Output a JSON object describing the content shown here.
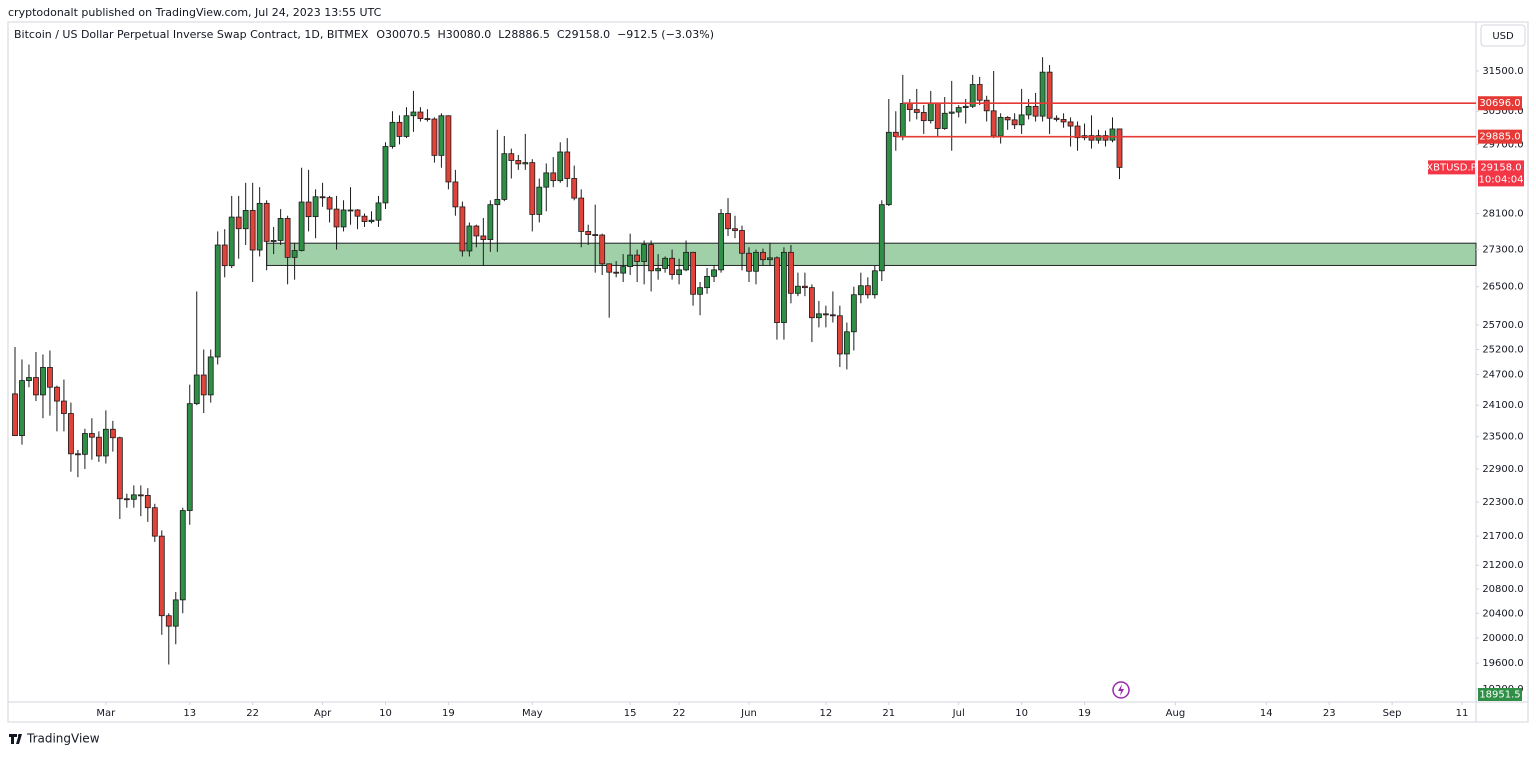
{
  "published": "cryptodonalt published on TradingView.com, Jul 24, 2023 13:55 UTC",
  "brand": "TradingView",
  "chart_data": {
    "type": "candlestick",
    "title": "Bitcoin / US Dollar Perpetual Inverse Swap Contract, 1D, BITMEX",
    "legend": [
      "O30070.5",
      "H30080.0",
      "L28886.5",
      "C29158.0",
      "−912.5 (−3.03%)"
    ],
    "currency": "USD",
    "up_color": "#2f8f46",
    "down_color": "#e0433a",
    "log_scale": true,
    "grid": false,
    "xlim": [
      "Feb 15",
      "Sep 13"
    ],
    "xticks": [
      {
        "value": "Mar 1",
        "label": "Mar"
      },
      {
        "value": "Mar 13",
        "label": "13"
      },
      {
        "value": "Mar 22",
        "label": "22"
      },
      {
        "value": "Apr 1",
        "label": "Apr"
      },
      {
        "value": "Apr 10",
        "label": "10"
      },
      {
        "value": "Apr 19",
        "label": "19"
      },
      {
        "value": "May 1",
        "label": "May"
      },
      {
        "value": "May 15",
        "label": "15"
      },
      {
        "value": "May 22",
        "label": "22"
      },
      {
        "value": "Jun 1",
        "label": "Jun"
      },
      {
        "value": "Jun 12",
        "label": "12"
      },
      {
        "value": "Jun 21",
        "label": "21"
      },
      {
        "value": "Jul 1",
        "label": "Jul"
      },
      {
        "value": "Jul 10",
        "label": "10"
      },
      {
        "value": "Jul 19",
        "label": "19"
      },
      {
        "value": "Aug 1",
        "label": "Aug"
      },
      {
        "value": "Aug 14",
        "label": "14"
      },
      {
        "value": "Aug 23",
        "label": "23"
      },
      {
        "value": "Sep 1",
        "label": "Sep"
      },
      {
        "value": "Sep 11",
        "label": "11"
      }
    ],
    "ylim": [
      19000,
      32760
    ],
    "yticks": [
      {
        "value": 31500,
        "label": "31500.0"
      },
      {
        "value": 30500,
        "label": "30500.0"
      },
      {
        "value": 29700,
        "label": "29700.0"
      },
      {
        "value": 28100,
        "label": "28100.0"
      },
      {
        "value": 27300,
        "label": "27300.0"
      },
      {
        "value": 26500,
        "label": "26500.0"
      },
      {
        "value": 25700,
        "label": "25700.0"
      },
      {
        "value": 25200,
        "label": "25200.0"
      },
      {
        "value": 24700,
        "label": "24700.0"
      },
      {
        "value": 24100,
        "label": "24100.0"
      },
      {
        "value": 23500,
        "label": "23500.0"
      },
      {
        "value": 22900,
        "label": "22900.0"
      },
      {
        "value": 22300,
        "label": "22300.0"
      },
      {
        "value": 21700,
        "label": "21700.0"
      },
      {
        "value": 21200,
        "label": "21200.0"
      },
      {
        "value": 20800,
        "label": "20800.0"
      },
      {
        "value": 20400,
        "label": "20400.0"
      },
      {
        "value": 20000,
        "label": "20000.0"
      },
      {
        "value": 19600,
        "label": "19600.0"
      },
      {
        "value": 19200,
        "label": "19200.0"
      }
    ],
    "zone": {
      "low": 26955,
      "high": 27440,
      "start": "Mar 24",
      "color": "#9fd0a8"
    },
    "price_lines": [
      {
        "value": 30696,
        "label": "30696.0",
        "start": "Jun 23",
        "color": "#e53935"
      },
      {
        "value": 29885,
        "label": "29885.0",
        "start": "Jun 22",
        "color": "#e53935"
      }
    ],
    "current": {
      "symbol": "XBTUSD.P",
      "value": 29158,
      "label": "29158.0",
      "countdown": "10:04:04",
      "color": "#f23645"
    },
    "bottom_price": 18951.5,
    "x": [
      "Feb 16",
      "Feb 17",
      "Feb 18",
      "Feb 19",
      "Feb 20",
      "Feb 21",
      "Feb 22",
      "Feb 23",
      "Feb 24",
      "Feb 25",
      "Feb 26",
      "Feb 27",
      "Feb 28",
      "Mar 1",
      "Mar 2",
      "Mar 3",
      "Mar 4",
      "Mar 5",
      "Mar 6",
      "Mar 7",
      "Mar 8",
      "Mar 9",
      "Mar 10",
      "Mar 11",
      "Mar 12",
      "Mar 13",
      "Mar 14",
      "Mar 15",
      "Mar 16",
      "Mar 17",
      "Mar 18",
      "Mar 19",
      "Mar 20",
      "Mar 21",
      "Mar 22",
      "Mar 23",
      "Mar 24",
      "Mar 25",
      "Mar 26",
      "Mar 27",
      "Mar 28",
      "Mar 29",
      "Mar 30",
      "Mar 31",
      "Apr 1",
      "Apr 2",
      "Apr 3",
      "Apr 4",
      "Apr 5",
      "Apr 6",
      "Apr 7",
      "Apr 8",
      "Apr 9",
      "Apr 10",
      "Apr 11",
      "Apr 12",
      "Apr 13",
      "Apr 14",
      "Apr 15",
      "Apr 16",
      "Apr 17",
      "Apr 18",
      "Apr 19",
      "Apr 20",
      "Apr 21",
      "Apr 22",
      "Apr 23",
      "Apr 24",
      "Apr 25",
      "Apr 26",
      "Apr 27",
      "Apr 28",
      "Apr 29",
      "Apr 30",
      "May 1",
      "May 2",
      "May 3",
      "May 4",
      "May 5",
      "May 6",
      "May 7",
      "May 8",
      "May 9",
      "May 10",
      "May 11",
      "May 12",
      "May 13",
      "May 14",
      "May 15",
      "May 16",
      "May 17",
      "May 18",
      "May 19",
      "May 20",
      "May 21",
      "May 22",
      "May 23",
      "May 24",
      "May 25",
      "May 26",
      "May 27",
      "May 28",
      "May 29",
      "May 30",
      "May 31",
      "Jun 1",
      "Jun 2",
      "Jun 3",
      "Jun 4",
      "Jun 5",
      "Jun 6",
      "Jun 7",
      "Jun 8",
      "Jun 9",
      "Jun 10",
      "Jun 11",
      "Jun 12",
      "Jun 13",
      "Jun 14",
      "Jun 15",
      "Jun 16",
      "Jun 17",
      "Jun 18",
      "Jun 19",
      "Jun 20",
      "Jun 21",
      "Jun 22",
      "Jun 23",
      "Jun 24",
      "Jun 25",
      "Jun 26",
      "Jun 27",
      "Jun 28",
      "Jun 29",
      "Jun 30",
      "Jul 1",
      "Jul 2",
      "Jul 3",
      "Jul 4",
      "Jul 5",
      "Jul 6",
      "Jul 7",
      "Jul 8",
      "Jul 9",
      "Jul 10",
      "Jul 11",
      "Jul 12",
      "Jul 13",
      "Jul 14",
      "Jul 15",
      "Jul 16",
      "Jul 17",
      "Jul 18",
      "Jul 19",
      "Jul 20",
      "Jul 21",
      "Jul 22",
      "Jul 23",
      "Jul 24"
    ],
    "ohlc": [
      [
        24320,
        25250,
        23520,
        23520
      ],
      [
        23520,
        25000,
        23350,
        24580
      ],
      [
        24580,
        24900,
        24450,
        24640
      ],
      [
        24640,
        25150,
        24180,
        24300
      ],
      [
        24300,
        25100,
        23850,
        24840
      ],
      [
        24840,
        25180,
        23900,
        24450
      ],
      [
        24450,
        24480,
        23600,
        24180
      ],
      [
        24180,
        24600,
        23600,
        23940
      ],
      [
        23940,
        24150,
        22850,
        23180
      ],
      [
        23180,
        23250,
        22750,
        23170
      ],
      [
        23170,
        23650,
        22900,
        23560
      ],
      [
        23560,
        23850,
        23070,
        23490
      ],
      [
        23490,
        23600,
        23030,
        23140
      ],
      [
        23140,
        24000,
        23000,
        23640
      ],
      [
        23640,
        23800,
        23220,
        23480
      ],
      [
        23480,
        23500,
        22000,
        22360
      ],
      [
        22360,
        22450,
        22200,
        22350
      ],
      [
        22350,
        22600,
        22200,
        22430
      ],
      [
        22430,
        22600,
        22050,
        22420
      ],
      [
        22420,
        22550,
        21950,
        22200
      ],
      [
        22200,
        22270,
        21600,
        21700
      ],
      [
        21700,
        21800,
        20050,
        20360
      ],
      [
        20360,
        20400,
        19580,
        20190
      ],
      [
        20190,
        20750,
        19900,
        20620
      ],
      [
        20620,
        22200,
        20400,
        22150
      ],
      [
        22150,
        24500,
        21900,
        24130
      ],
      [
        24130,
        26400,
        24100,
        24690
      ],
      [
        24690,
        25200,
        23950,
        24300
      ],
      [
        24300,
        25200,
        24150,
        25050
      ],
      [
        25050,
        27700,
        24900,
        27400
      ],
      [
        27400,
        27750,
        26700,
        26950
      ],
      [
        26950,
        28500,
        26900,
        28020
      ],
      [
        28020,
        28500,
        27100,
        27760
      ],
      [
        27760,
        28800,
        27400,
        28170
      ],
      [
        28170,
        28800,
        26600,
        27290
      ],
      [
        27290,
        28700,
        27150,
        28330
      ],
      [
        28330,
        28400,
        26850,
        27480
      ],
      [
        27480,
        27800,
        27200,
        27500
      ],
      [
        27500,
        28200,
        27400,
        27990
      ],
      [
        27990,
        28050,
        26550,
        27130
      ],
      [
        27130,
        27450,
        26650,
        27280
      ],
      [
        27280,
        29150,
        27260,
        28360
      ],
      [
        28360,
        29100,
        27700,
        28030
      ],
      [
        28030,
        28650,
        27550,
        28480
      ],
      [
        28480,
        28800,
        28250,
        28460
      ],
      [
        28460,
        28500,
        27900,
        28200
      ],
      [
        28200,
        28500,
        27300,
        27800
      ],
      [
        27800,
        28400,
        27700,
        28180
      ],
      [
        28180,
        28700,
        27850,
        28180
      ],
      [
        28180,
        28200,
        27750,
        28040
      ],
      [
        28040,
        28100,
        27800,
        27920
      ],
      [
        27920,
        28150,
        27880,
        27950
      ],
      [
        27950,
        28500,
        27800,
        28340
      ],
      [
        28340,
        29750,
        28200,
        29650
      ],
      [
        29650,
        30500,
        29600,
        30230
      ],
      [
        30230,
        30400,
        29700,
        29890
      ],
      [
        29890,
        30600,
        29850,
        30390
      ],
      [
        30390,
        31000,
        30000,
        30480
      ],
      [
        30480,
        30600,
        30250,
        30320
      ],
      [
        30320,
        30550,
        30250,
        30310
      ],
      [
        30310,
        30350,
        29270,
        29440
      ],
      [
        29440,
        30450,
        29150,
        30390
      ],
      [
        30390,
        30400,
        28650,
        28820
      ],
      [
        28820,
        29100,
        28050,
        28250
      ],
      [
        28250,
        28370,
        27150,
        27270
      ],
      [
        27270,
        27900,
        27150,
        27820
      ],
      [
        27820,
        27850,
        27350,
        27600
      ],
      [
        27600,
        28000,
        26950,
        27520
      ],
      [
        27520,
        28400,
        27250,
        28300
      ],
      [
        28300,
        30050,
        27250,
        28420
      ],
      [
        28420,
        29900,
        28380,
        29480
      ],
      [
        29480,
        29600,
        28900,
        29320
      ],
      [
        29320,
        29450,
        29100,
        29240
      ],
      [
        29240,
        29950,
        29100,
        29270
      ],
      [
        29270,
        29350,
        27700,
        28080
      ],
      [
        28080,
        28900,
        27900,
        28700
      ],
      [
        28700,
        29250,
        28150,
        29030
      ],
      [
        29030,
        29400,
        28700,
        28850
      ],
      [
        28850,
        29750,
        28800,
        29520
      ],
      [
        29520,
        29850,
        28700,
        28900
      ],
      [
        28900,
        29200,
        28400,
        28450
      ],
      [
        28450,
        28650,
        27350,
        27700
      ],
      [
        27700,
        27850,
        27400,
        27630
      ],
      [
        27630,
        28300,
        26800,
        27620
      ],
      [
        27620,
        27650,
        26750,
        26990
      ],
      [
        26990,
        27000,
        25850,
        26810
      ],
      [
        26810,
        27050,
        26700,
        26790
      ],
      [
        26790,
        27200,
        26600,
        26930
      ],
      [
        26930,
        27650,
        26750,
        27180
      ],
      [
        27180,
        27300,
        26600,
        27040
      ],
      [
        27040,
        27500,
        26550,
        27410
      ],
      [
        27410,
        27500,
        26400,
        26840
      ],
      [
        26840,
        27200,
        26650,
        26890
      ],
      [
        26890,
        27150,
        26800,
        27110
      ],
      [
        27110,
        27300,
        26650,
        26760
      ],
      [
        26760,
        27100,
        26550,
        26860
      ],
      [
        26860,
        27500,
        26830,
        27240
      ],
      [
        27240,
        27250,
        26100,
        26340
      ],
      [
        26340,
        26600,
        25900,
        26480
      ],
      [
        26480,
        26900,
        26350,
        26720
      ],
      [
        26720,
        26950,
        26600,
        26860
      ],
      [
        26860,
        28200,
        26800,
        28100
      ],
      [
        28100,
        28450,
        27600,
        27760
      ],
      [
        27760,
        28050,
        27550,
        27720
      ],
      [
        27720,
        27830,
        26850,
        27220
      ],
      [
        27220,
        27350,
        26600,
        26830
      ],
      [
        26830,
        27300,
        26550,
        27240
      ],
      [
        27240,
        27320,
        26950,
        27080
      ],
      [
        27080,
        27450,
        26950,
        27120
      ],
      [
        27120,
        27150,
        25400,
        25750
      ],
      [
        25750,
        27350,
        25400,
        27240
      ],
      [
        27240,
        27400,
        26150,
        26360
      ],
      [
        26360,
        26800,
        26300,
        26510
      ],
      [
        26510,
        26800,
        26300,
        26480
      ],
      [
        26480,
        26550,
        25350,
        25850
      ],
      [
        25850,
        26200,
        25650,
        25930
      ],
      [
        25930,
        26100,
        25650,
        25910
      ],
      [
        25910,
        26400,
        25750,
        25890
      ],
      [
        25890,
        26100,
        24850,
        25110
      ],
      [
        25110,
        25750,
        24800,
        25560
      ],
      [
        25560,
        26500,
        25180,
        26330
      ],
      [
        26330,
        26800,
        26150,
        26520
      ],
      [
        26520,
        26700,
        26250,
        26330
      ],
      [
        26330,
        26950,
        26250,
        26840
      ],
      [
        26840,
        28400,
        26620,
        28300
      ],
      [
        28300,
        30800,
        28270,
        29990
      ],
      [
        29990,
        30500,
        29550,
        29890
      ],
      [
        29890,
        31400,
        29800,
        30690
      ],
      [
        30690,
        30800,
        30250,
        30540
      ],
      [
        30540,
        31050,
        30300,
        30470
      ],
      [
        30470,
        30650,
        29950,
        30270
      ],
      [
        30270,
        31000,
        30200,
        30690
      ],
      [
        30690,
        30700,
        29900,
        30080
      ],
      [
        30080,
        30850,
        30050,
        30450
      ],
      [
        30450,
        31250,
        29550,
        30480
      ],
      [
        30480,
        30650,
        30350,
        30590
      ],
      [
        30590,
        30800,
        30200,
        30620
      ],
      [
        30620,
        31400,
        30580,
        31160
      ],
      [
        31160,
        31350,
        30650,
        30770
      ],
      [
        30770,
        30880,
        30250,
        30510
      ],
      [
        30510,
        31500,
        29850,
        29900
      ],
      [
        29900,
        30450,
        29720,
        30350
      ],
      [
        30350,
        30380,
        30050,
        30290
      ],
      [
        30290,
        30450,
        30070,
        30170
      ],
      [
        30170,
        31050,
        29950,
        30410
      ],
      [
        30410,
        30800,
        30300,
        30620
      ],
      [
        30620,
        30950,
        30250,
        30380
      ],
      [
        30380,
        31850,
        30250,
        31470
      ],
      [
        31470,
        31650,
        29950,
        30330
      ],
      [
        30330,
        30400,
        30250,
        30300
      ],
      [
        30300,
        30450,
        30100,
        30240
      ],
      [
        30240,
        30350,
        29650,
        30140
      ],
      [
        30140,
        30250,
        29550,
        29860
      ],
      [
        29860,
        30200,
        29800,
        29910
      ],
      [
        29910,
        30400,
        29600,
        29800
      ],
      [
        29800,
        30050,
        29720,
        29910
      ],
      [
        29910,
        30030,
        29650,
        29800
      ],
      [
        29800,
        30350,
        29750,
        30070
      ],
      [
        30070.5,
        30080,
        28886.5,
        29158
      ]
    ]
  }
}
